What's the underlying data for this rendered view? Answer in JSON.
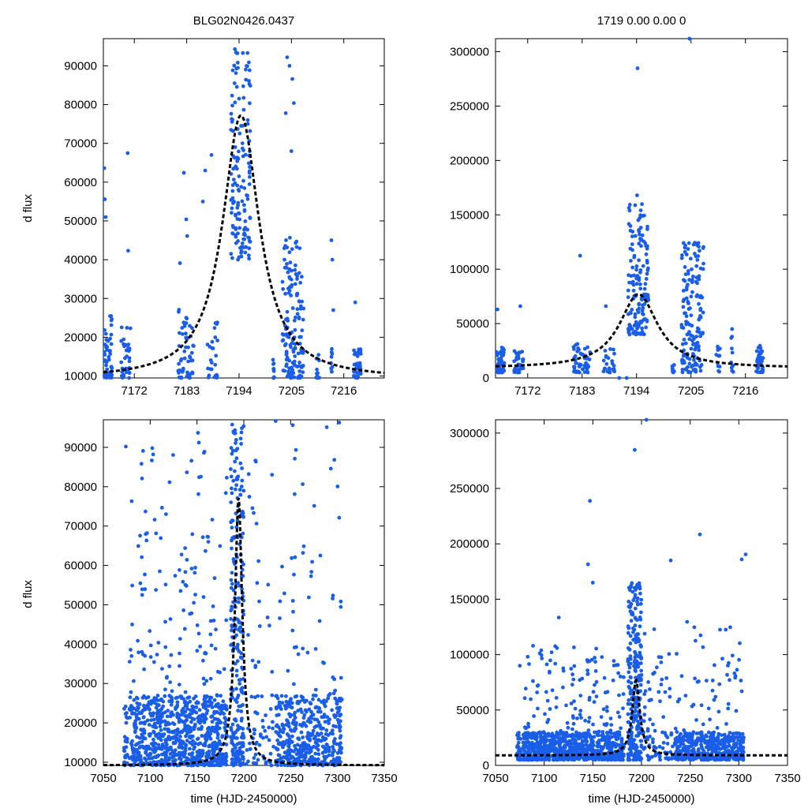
{
  "figure": {
    "title_left": "BLG02N0426.0437",
    "title_right": "1719  0.00  0.00  0",
    "ylabel": "d flux",
    "xlabel": "time (HJD-2450000)"
  },
  "colors": {
    "points": "#1a5ee8",
    "model": "#000000"
  },
  "model": {
    "t0": 7194.4,
    "tE": 4.7,
    "base": 9200,
    "amplitude": 68000
  },
  "chart_data": [
    {
      "type": "scatter",
      "panel": "top-left",
      "title": "BLG02N0426.0437",
      "ylabel": "d flux",
      "xlim": [
        7165.5,
        7224.5
      ],
      "ylim": [
        9500,
        97000
      ],
      "xticks": [
        7172,
        7183,
        7194,
        7205,
        7216
      ],
      "yticks": [
        10000,
        20000,
        30000,
        40000,
        50000,
        60000,
        70000,
        80000,
        90000
      ],
      "ytick_labels": [
        "10000",
        "20000",
        "30000",
        "40000",
        "50000",
        "60000",
        "70000",
        "80000",
        "90000"
      ],
      "series": [
        {
          "name": "photometry",
          "style": "points",
          "clusters": [
            {
              "x": [
                7165.6,
                7167.3
              ],
              "y": [
                9500,
                26000
              ],
              "n": 60
            },
            {
              "x": [
                7169.2,
                7171.2
              ],
              "y": [
                9500,
                24000
              ],
              "n": 35
            },
            {
              "x": [
                7181.2,
                7184.6
              ],
              "y": [
                9500,
                28000
              ],
              "n": 55
            },
            {
              "x": [
                7187.3,
                7189.6
              ],
              "y": [
                9500,
                24000
              ],
              "n": 25
            },
            {
              "x": [
                7192.3,
                7196.4
              ],
              "y": [
                40000,
                97000
              ],
              "n": 150
            },
            {
              "x": [
                7201.1,
                7201.6
              ],
              "y": [
                9500,
                15000
              ],
              "n": 10
            },
            {
              "x": [
                7203.1,
                7207.6
              ],
              "y": [
                9500,
                46000
              ],
              "n": 150
            },
            {
              "x": [
                7210.1,
                7210.9
              ],
              "y": [
                9500,
                17000
              ],
              "n": 12
            },
            {
              "x": [
                7213.1,
                7213.6
              ],
              "y": [
                9500,
                17000
              ],
              "n": 10
            },
            {
              "x": [
                7218.1,
                7219.6
              ],
              "y": [
                9500,
                17000
              ],
              "n": 40
            }
          ],
          "outliers": [
            [
              7165.7,
              63600
            ],
            [
              7165.8,
              55600
            ],
            [
              7166.0,
              51000
            ],
            [
              7170.6,
              67500
            ],
            [
              7170.7,
              42300
            ],
            [
              7181.6,
              39100
            ],
            [
              7182.4,
              62400
            ],
            [
              7182.9,
              50400
            ],
            [
              7183.1,
              46100
            ],
            [
              7186.4,
              55000
            ],
            [
              7186.9,
              63000
            ],
            [
              7188.2,
              67000
            ],
            [
              7203.8,
              77800
            ],
            [
              7204.1,
              92200
            ],
            [
              7204.6,
              90000
            ],
            [
              7205.2,
              86600
            ],
            [
              7205.5,
              80400
            ],
            [
              7205.0,
              68000
            ],
            [
              7213.4,
              45000
            ],
            [
              7213.6,
              40000
            ],
            [
              7218.4,
              29000
            ],
            [
              7213.8,
              27000
            ]
          ]
        },
        {
          "name": "model",
          "style": "dashed"
        }
      ]
    },
    {
      "type": "scatter",
      "panel": "top-right",
      "title": "1719  0.00  0.00  0",
      "ylabel": "",
      "xlim": [
        7165.5,
        7224.5
      ],
      "ylim": [
        0,
        312000
      ],
      "xticks": [
        7172,
        7183,
        7194,
        7205,
        7216
      ],
      "yticks": [
        0,
        50000,
        100000,
        150000,
        200000,
        250000,
        300000
      ],
      "ytick_labels": [
        "0",
        "50000",
        "100000",
        "150000",
        "200000",
        "250000",
        "300000"
      ],
      "series": [
        {
          "name": "photometry",
          "style": "points",
          "clusters": [
            {
              "x": [
                7165.6,
                7167.3
              ],
              "y": [
                5000,
                28000
              ],
              "n": 60
            },
            {
              "x": [
                7169.2,
                7171.2
              ],
              "y": [
                5000,
                25000
              ],
              "n": 35
            },
            {
              "x": [
                7181.2,
                7184.6
              ],
              "y": [
                5000,
                32000
              ],
              "n": 55
            },
            {
              "x": [
                7187.3,
                7189.6
              ],
              "y": [
                5000,
                28000
              ],
              "n": 25
            },
            {
              "x": [
                7192.3,
                7196.4
              ],
              "y": [
                40000,
                160000
              ],
              "n": 150
            },
            {
              "x": [
                7201.1,
                7201.6
              ],
              "y": [
                5000,
                15000
              ],
              "n": 10
            },
            {
              "x": [
                7203.1,
                7207.6
              ],
              "y": [
                5000,
                125000
              ],
              "n": 150
            },
            {
              "x": [
                7210.1,
                7210.9
              ],
              "y": [
                5000,
                33000
              ],
              "n": 12
            },
            {
              "x": [
                7213.1,
                7213.6
              ],
              "y": [
                5000,
                45000
              ],
              "n": 10
            },
            {
              "x": [
                7218.1,
                7219.6
              ],
              "y": [
                5000,
                30000
              ],
              "n": 40
            }
          ],
          "outliers": [
            [
              7194.2,
              284800
            ],
            [
              7204.7,
              312000
            ],
            [
              7194.1,
              168000
            ],
            [
              7182.6,
              112500
            ],
            [
              7165.9,
              63000
            ],
            [
              7170.5,
              66000
            ],
            [
              7192.0,
              0
            ],
            [
              7190.5,
              0
            ],
            [
              7213.3,
              45000
            ],
            [
              7187.8,
              66000
            ],
            [
              7206.7,
              117000
            ],
            [
              7204.6,
              124000
            ]
          ]
        },
        {
          "name": "model",
          "style": "dashed"
        }
      ]
    },
    {
      "type": "scatter",
      "panel": "bottom-left",
      "title": "",
      "ylabel": "d flux",
      "xlabel": "time (HJD-2450000)",
      "xlim": [
        7050,
        7350
      ],
      "ylim": [
        9200,
        97000
      ],
      "xticks": [
        7050,
        7100,
        7150,
        7200,
        7250,
        7300,
        7350
      ],
      "yticks": [
        10000,
        20000,
        30000,
        40000,
        50000,
        60000,
        70000,
        80000,
        90000
      ],
      "ytick_labels": [
        "10000",
        "20000",
        "30000",
        "40000",
        "50000",
        "60000",
        "70000",
        "80000",
        "90000"
      ],
      "series": [
        {
          "name": "photometry",
          "style": "points",
          "clusters": [
            {
              "x": [
                7072,
                7076
              ],
              "y": [
                9200,
                25000
              ],
              "n": 30
            },
            {
              "x": [
                7078,
                7182
              ],
              "y": [
                9200,
                27000
              ],
              "n": 750
            },
            {
              "x": [
                7078,
                7182
              ],
              "y": [
                20000,
                90000
              ],
              "n": 170
            },
            {
              "x": [
                7186,
                7200
              ],
              "y": [
                9200,
                97000
              ],
              "n": 260
            },
            {
              "x": [
                7202,
                7232
              ],
              "y": [
                9200,
                22000
              ],
              "n": 40
            },
            {
              "x": [
                7202,
                7232
              ],
              "y": [
                22000,
                90000
              ],
              "n": 30
            },
            {
              "x": [
                7234,
                7305
              ],
              "y": [
                9200,
                27000
              ],
              "n": 430
            },
            {
              "x": [
                7234,
                7305
              ],
              "y": [
                25000,
                96000
              ],
              "n": 60
            }
          ],
          "outliers": [
            [
              7074,
              90200
            ],
            [
              7095,
              73700
            ],
            [
              7151,
              93700
            ],
            [
              7152,
              91200
            ],
            [
              7158,
              88900
            ],
            [
              7234,
              96700
            ],
            [
              7302,
              96300
            ]
          ]
        },
        {
          "name": "model",
          "style": "dashed"
        }
      ]
    },
    {
      "type": "scatter",
      "panel": "bottom-right",
      "title": "",
      "ylabel": "",
      "xlabel": "time (HJD-2450000)",
      "xlim": [
        7050,
        7350
      ],
      "ylim": [
        0,
        312000
      ],
      "xticks": [
        7050,
        7100,
        7150,
        7200,
        7250,
        7300,
        7350
      ],
      "yticks": [
        0,
        50000,
        100000,
        150000,
        200000,
        250000,
        300000
      ],
      "ytick_labels": [
        "0",
        "50000",
        "100000",
        "150000",
        "200000",
        "250000",
        "300000"
      ],
      "series": [
        {
          "name": "photometry",
          "style": "points",
          "clusters": [
            {
              "x": [
                7072,
                7076
              ],
              "y": [
                5000,
                30000
              ],
              "n": 30
            },
            {
              "x": [
                7078,
                7182
              ],
              "y": [
                5000,
                30000
              ],
              "n": 750
            },
            {
              "x": [
                7078,
                7182
              ],
              "y": [
                25000,
                110000
              ],
              "n": 150
            },
            {
              "x": [
                7186,
                7200
              ],
              "y": [
                5000,
                165000
              ],
              "n": 260
            },
            {
              "x": [
                7202,
                7232
              ],
              "y": [
                5000,
                30000
              ],
              "n": 40
            },
            {
              "x": [
                7202,
                7232
              ],
              "y": [
                25000,
                125000
              ],
              "n": 40
            },
            {
              "x": [
                7234,
                7305
              ],
              "y": [
                5000,
                30000
              ],
              "n": 430
            },
            {
              "x": [
                7234,
                7305
              ],
              "y": [
                25000,
                130000
              ],
              "n": 60
            }
          ],
          "outliers": [
            [
              7147,
              238800
            ],
            [
              7145,
              181500
            ],
            [
              7193,
              284800
            ],
            [
              7205,
              312000
            ],
            [
              7260,
              208500
            ],
            [
              7230,
              185000
            ],
            [
              7303,
              186000
            ],
            [
              7307,
              190500
            ],
            [
              7115,
              133500
            ],
            [
              7075,
              90000
            ],
            [
              7150,
              165000
            ]
          ]
        },
        {
          "name": "model",
          "style": "dashed"
        }
      ]
    }
  ]
}
